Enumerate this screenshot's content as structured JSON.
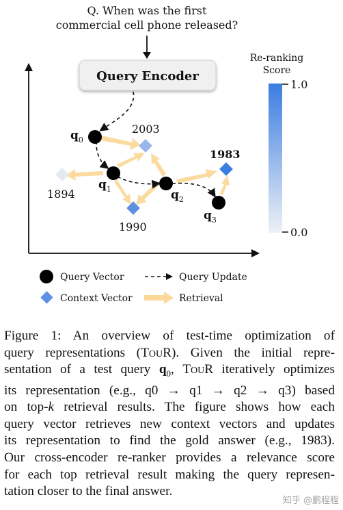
{
  "figure": {
    "question_line1": "Q. When was the first",
    "question_line2": "commercial cell phone released?",
    "encoder_label": "Query Encoder",
    "colorbar_title_line1": "Re-ranking",
    "colorbar_title_line2": "Score",
    "colorbar_max": "1.0",
    "colorbar_min": "0.0",
    "query_labels": [
      {
        "main": "q",
        "sub": "0"
      },
      {
        "main": "q",
        "sub": "1"
      },
      {
        "main": "q",
        "sub": "2"
      },
      {
        "main": "q",
        "sub": "3"
      }
    ],
    "context_labels": [
      "2003",
      "1983",
      "1894",
      "1990"
    ],
    "legend": {
      "query_vector": "Query Vector",
      "query_update": "Query Update",
      "context_vector": "Context Vector",
      "retrieval": "Retrieval"
    },
    "colors": {
      "arrow": "#fbd99a",
      "high_score": "#3b7de0",
      "low_score": "#e4e9f2",
      "node": "#000000",
      "encoder_fill": "#f0f0f0"
    }
  },
  "caption": {
    "line1": "Figure 1:  An overview of test-time optimization of",
    "line2a": "query representations (",
    "line2_tour": "TouR",
    "line2b": "). Given the initial repre-",
    "line3a": "sentation of a test query ",
    "line3_q": "q",
    "line3_sub": "0",
    "line3b": ", ",
    "line3_tour": "TouR",
    "line3c": " iteratively optimizes",
    "line4": "its representation (e.g., q0 → q1 → q2 → q3) based",
    "line5a": "on top-",
    "line5_k": "k",
    "line5b": " retrieval results.  The figure shows how each",
    "line6": "query vector retrieves new context vectors and updates",
    "line7": "its representation to find the gold answer (e.g., 1983).",
    "line8": "Our cross-encoder re-ranker provides a relevance score",
    "line9": "for each top retrieval result making the query represen-",
    "line10": "tation closer to the final answer."
  },
  "watermark": "知乎 @鹏程程"
}
